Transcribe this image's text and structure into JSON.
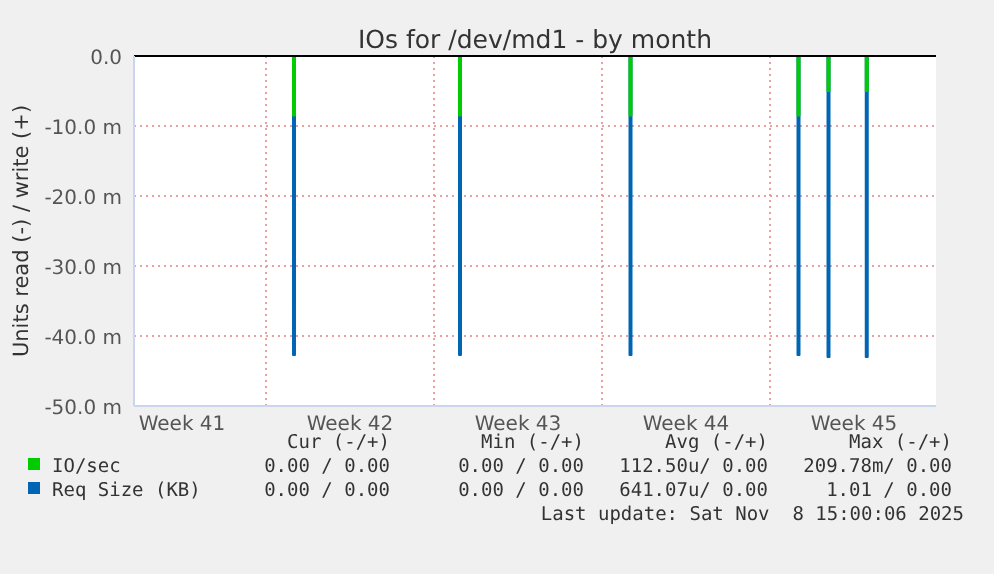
{
  "chart_data": {
    "type": "area",
    "title": "IOs for /dev/md1 - by month",
    "ylabel": "Units read (-) / write (+)",
    "xlim": [
      "2025-10-07T12:00",
      "2025-11-09T22:00"
    ],
    "xticks": [
      {
        "value": "2025-10-09T12:00",
        "label": "Week 41"
      },
      {
        "value": "2025-10-13T00:00",
        "label": null
      },
      {
        "value": "2025-10-16T12:00",
        "label": "Week 42"
      },
      {
        "value": "2025-10-20T00:00",
        "label": null
      },
      {
        "value": "2025-10-23T12:00",
        "label": "Week 43"
      },
      {
        "value": "2025-10-27T00:00",
        "label": null
      },
      {
        "value": "2025-10-30T12:00",
        "label": "Week 44"
      },
      {
        "value": "2025-11-03T00:00",
        "label": null
      },
      {
        "value": "2025-11-06T12:00",
        "label": "Week 45"
      }
    ],
    "ylim": [
      -50,
      0
    ],
    "yticks": [
      {
        "value": 0,
        "label": "0.0"
      },
      {
        "value": -10,
        "label": "-10.0 m"
      },
      {
        "value": -20,
        "label": "-20.0 m"
      },
      {
        "value": -30,
        "label": "-30.0 m"
      },
      {
        "value": -40,
        "label": "-40.0 m"
      },
      {
        "value": -50,
        "label": "-50.0 m"
      }
    ],
    "grid": true,
    "legend": "bottom",
    "series": [
      {
        "name": "IO/sec",
        "color": "#00cc00",
        "x": [
          "2025-10-07T12:00",
          "2025-10-14T03:00",
          "2025-10-14T03:01",
          "2025-10-14T05:00",
          "2025-10-14T05:01",
          "2025-10-21T01:00",
          "2025-10-21T01:01",
          "2025-10-21T03:00",
          "2025-10-21T03:01",
          "2025-10-28T03:30",
          "2025-10-28T03:31",
          "2025-10-28T05:30",
          "2025-10-28T05:31",
          "2025-11-04T03:30",
          "2025-11-04T03:31",
          "2025-11-04T05:30",
          "2025-11-04T05:31",
          "2025-11-05T09:30",
          "2025-11-05T09:31",
          "2025-11-05T11:30",
          "2025-11-05T11:31",
          "2025-11-06T23:45",
          "2025-11-06T23:46",
          "2025-11-07T01:45",
          "2025-11-07T01:46",
          "2025-11-09T22:00"
        ],
        "values": [
          0,
          0,
          -8.5,
          -8.5,
          0,
          0,
          -8.5,
          -8.5,
          0,
          0,
          -8.5,
          -8.5,
          0,
          0,
          -8.5,
          -8.5,
          0,
          0,
          -5,
          -5,
          0,
          0,
          -5,
          -5,
          0,
          0
        ]
      },
      {
        "name": "Req Size (KB)",
        "color": "#0066b3",
        "x": [
          "2025-10-07T12:00",
          "2025-10-14T03:00",
          "2025-10-14T03:01",
          "2025-10-14T05:00",
          "2025-10-14T05:01",
          "2025-10-21T01:00",
          "2025-10-21T01:01",
          "2025-10-21T03:00",
          "2025-10-21T03:01",
          "2025-10-28T03:30",
          "2025-10-28T03:31",
          "2025-10-28T05:30",
          "2025-10-28T05:31",
          "2025-11-04T03:30",
          "2025-11-04T03:31",
          "2025-11-04T05:30",
          "2025-11-04T05:31",
          "2025-11-05T09:30",
          "2025-11-05T09:31",
          "2025-11-05T11:30",
          "2025-11-05T11:31",
          "2025-11-06T23:45",
          "2025-11-06T23:46",
          "2025-11-07T01:45",
          "2025-11-07T01:46",
          "2025-11-09T22:00"
        ],
        "values": [
          0,
          0,
          -42.7,
          -42.7,
          0,
          0,
          -42.7,
          -42.7,
          0,
          0,
          -42.7,
          -42.7,
          0,
          0,
          -42.7,
          -42.7,
          0,
          0,
          -43,
          -43,
          0,
          0,
          -43,
          -43,
          0,
          0
        ]
      }
    ],
    "annotations": [
      "Cur (-/+)",
      "Min (-/+)",
      "Avg (-/+)",
      "Max (-/+)",
      "0.00 / 0.00",
      "0.00 / 0.00",
      "112.50u/ 0.00",
      "209.78m/ 0.00",
      "0.00 / 0.00",
      "0.00 / 0.00",
      "641.07u/ 0.00",
      "1.01 / 0.00",
      "Last update: Sat Nov  8 15:00:06 2025"
    ]
  }
}
